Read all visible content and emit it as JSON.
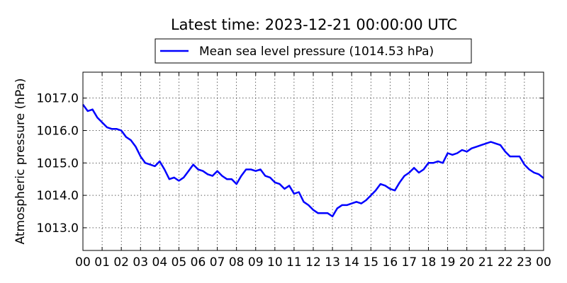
{
  "chart_data": {
    "type": "line",
    "title": "Latest time: 2023-12-21 00:00:00 UTC",
    "xlabel": "",
    "ylabel": "Atmospheric pressure (hPa)",
    "xlim": [
      0,
      24
    ],
    "ylim": [
      1012.3,
      1017.8
    ],
    "yticks": [
      1013.0,
      1014.0,
      1015.0,
      1016.0,
      1017.0
    ],
    "ytick_labels": [
      "1013.0",
      "1014.0",
      "1015.0",
      "1016.0",
      "1017.0"
    ],
    "xticks": [
      0,
      1,
      2,
      3,
      4,
      5,
      6,
      7,
      8,
      9,
      10,
      11,
      12,
      13,
      14,
      15,
      16,
      17,
      18,
      19,
      20,
      21,
      22,
      23,
      24
    ],
    "xtick_labels": [
      "00",
      "01",
      "02",
      "03",
      "04",
      "05",
      "06",
      "07",
      "08",
      "09",
      "10",
      "11",
      "12",
      "13",
      "14",
      "15",
      "16",
      "17",
      "18",
      "19",
      "20",
      "21",
      "22",
      "23",
      "00"
    ],
    "grid": true,
    "legend_position": "top-center",
    "series": [
      {
        "name": "Mean sea level pressure (1014.53 hPa)",
        "color": "#0000ff",
        "x": [
          0.0,
          0.25,
          0.5,
          0.75,
          1.0,
          1.25,
          1.5,
          1.75,
          2.0,
          2.25,
          2.5,
          2.75,
          3.0,
          3.25,
          3.5,
          3.75,
          4.0,
          4.25,
          4.5,
          4.75,
          5.0,
          5.25,
          5.5,
          5.75,
          6.0,
          6.25,
          6.5,
          6.75,
          7.0,
          7.25,
          7.5,
          7.75,
          8.0,
          8.25,
          8.5,
          8.75,
          9.0,
          9.25,
          9.5,
          9.75,
          10.0,
          10.25,
          10.5,
          10.75,
          11.0,
          11.25,
          11.5,
          11.75,
          12.0,
          12.25,
          12.5,
          12.75,
          13.0,
          13.25,
          13.5,
          13.75,
          14.0,
          14.25,
          14.5,
          14.75,
          15.0,
          15.25,
          15.5,
          15.75,
          16.0,
          16.25,
          16.5,
          16.75,
          17.0,
          17.25,
          17.5,
          17.75,
          18.0,
          18.25,
          18.5,
          18.75,
          19.0,
          19.25,
          19.5,
          19.75,
          20.0,
          20.25,
          20.5,
          20.75,
          21.0,
          21.25,
          21.5,
          21.75,
          22.0,
          22.25,
          22.5,
          22.75,
          23.0,
          23.25,
          23.5,
          23.75,
          24.0
        ],
        "y": [
          1016.8,
          1016.6,
          1016.65,
          1016.4,
          1016.25,
          1016.1,
          1016.05,
          1016.05,
          1016.0,
          1015.8,
          1015.7,
          1015.5,
          1015.2,
          1015.0,
          1014.95,
          1014.9,
          1015.05,
          1014.8,
          1014.5,
          1014.55,
          1014.45,
          1014.55,
          1014.75,
          1014.95,
          1014.8,
          1014.75,
          1014.65,
          1014.6,
          1014.75,
          1014.6,
          1014.5,
          1014.5,
          1014.35,
          1014.6,
          1014.8,
          1014.8,
          1014.75,
          1014.8,
          1014.6,
          1014.55,
          1014.4,
          1014.35,
          1014.2,
          1014.3,
          1014.05,
          1014.1,
          1013.8,
          1013.7,
          1013.55,
          1013.45,
          1013.45,
          1013.45,
          1013.35,
          1013.6,
          1013.7,
          1013.7,
          1013.75,
          1013.8,
          1013.75,
          1013.85,
          1014.0,
          1014.15,
          1014.35,
          1014.3,
          1014.2,
          1014.15,
          1014.4,
          1014.6,
          1014.7,
          1014.85,
          1014.7,
          1014.8,
          1015.0,
          1015.0,
          1015.05,
          1015.0,
          1015.3,
          1015.25,
          1015.3,
          1015.4,
          1015.35,
          1015.45,
          1015.5,
          1015.55,
          1015.6,
          1015.65,
          1015.6,
          1015.55,
          1015.35,
          1015.2,
          1015.2,
          1015.2,
          1014.95,
          1014.8,
          1014.7,
          1014.65,
          1014.53
        ]
      }
    ]
  }
}
